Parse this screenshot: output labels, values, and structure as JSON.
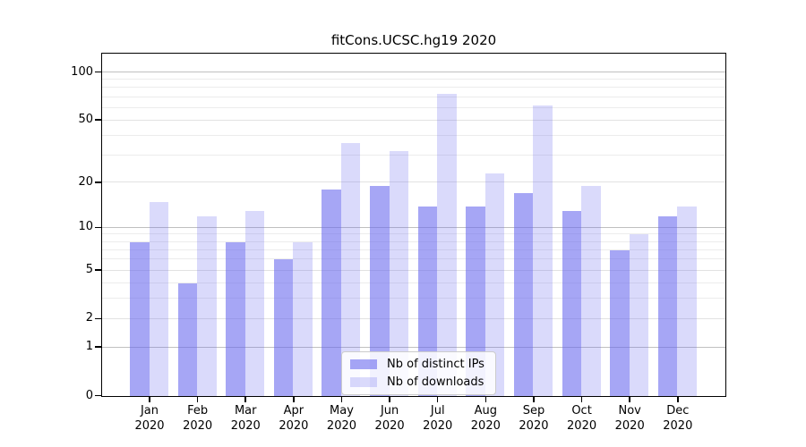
{
  "chart_data": {
    "type": "bar",
    "title": "fitCons.UCSC.hg19 2020",
    "months": [
      "Jan",
      "Feb",
      "Mar",
      "Apr",
      "May",
      "Jun",
      "Jul",
      "Aug",
      "Sep",
      "Oct",
      "Nov",
      "Dec"
    ],
    "year": "2020",
    "series": [
      {
        "name": "Nb of distinct IPs",
        "key": "distinct-ips",
        "values": [
          8,
          4,
          8,
          6,
          18,
          19,
          14,
          14,
          17,
          13,
          7,
          12
        ],
        "base_color": "#6666ee",
        "alpha": 0.58
      },
      {
        "name": "Nb of downloads",
        "key": "downloads",
        "values": [
          15,
          12,
          13,
          8,
          36,
          32,
          74,
          23,
          62,
          19,
          9,
          14
        ],
        "base_color": "#6666ee",
        "alpha": 0.24
      }
    ],
    "yscale": "log1p",
    "ylim": [
      0,
      129.6
    ],
    "yticks": [
      0,
      1,
      2,
      5,
      10,
      20,
      50,
      100
    ],
    "gridlines": {
      "major": [
        1,
        10,
        100
      ],
      "mid": [
        2,
        5,
        20,
        50
      ],
      "minor": [
        3,
        4,
        6,
        7,
        8,
        9,
        30,
        40,
        60,
        70,
        80,
        90
      ]
    },
    "legend_position": "lower center",
    "grid_on": true
  },
  "colors": {
    "grid_major": "#c0c0c0",
    "grid_mid": "#e2e2e2",
    "grid_minor": "#ececec",
    "axis": "#000000",
    "background": "#ffffff"
  }
}
